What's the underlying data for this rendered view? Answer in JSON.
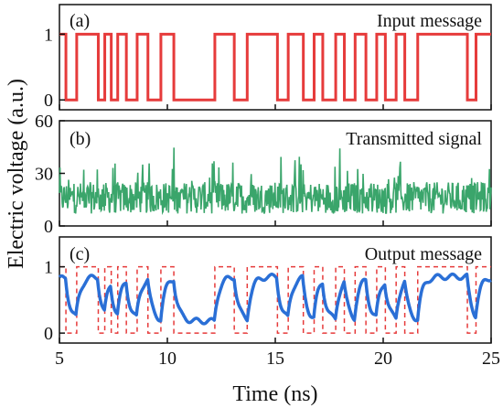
{
  "chart_data": [
    {
      "type": "line",
      "panel_label": "(a)",
      "annotation": "Input message",
      "ylim": [
        -0.15,
        1.45
      ],
      "yticks": [
        "0",
        "1"
      ],
      "ytick_values": [
        0,
        1
      ],
      "xlim": [
        5,
        25
      ],
      "color": "#e63b3b",
      "series": [
        {
          "x": [
            5.0,
            5.3,
            5.8,
            6.3,
            6.8,
            7.1,
            7.4,
            7.7,
            8.1,
            8.6,
            9.1,
            9.7,
            10.3,
            11.3,
            12.2,
            13.1,
            13.7,
            14.5,
            15.1,
            15.6,
            16.3,
            16.8,
            17.2,
            17.8,
            18.2,
            18.7,
            19.2,
            19.7,
            20.1,
            20.6,
            21.0,
            21.6,
            22.3,
            22.8,
            23.4,
            23.9,
            24.3,
            25.0
          ],
          "y": [
            1,
            0,
            1,
            1,
            0,
            1,
            0,
            1,
            0,
            1,
            0,
            1,
            0,
            0,
            1,
            0,
            1,
            1,
            0,
            1,
            0,
            1,
            0,
            1,
            0,
            1,
            0,
            1,
            0,
            1,
            0,
            1,
            1,
            1,
            1,
            0,
            1,
            1
          ]
        }
      ]
    },
    {
      "type": "line",
      "panel_label": "(b)",
      "annotation": "Transmitted signal",
      "ylim": [
        0,
        60
      ],
      "yticks": [
        "0",
        "30",
        "60"
      ],
      "ytick_values": [
        0,
        30,
        60
      ],
      "xlim": [
        5,
        25
      ],
      "color": "#3aa56b",
      "baseline": 16,
      "spread": 9,
      "n_points": 800
    },
    {
      "type": "line",
      "panel_label": "(c)",
      "annotation": "Output message",
      "ylim": [
        -0.15,
        1.45
      ],
      "yticks": [
        "0",
        "1"
      ],
      "ytick_values": [
        0,
        1
      ],
      "xlim": [
        5,
        25
      ],
      "output_color": "#2a6fd6",
      "reference_color": "#e63b3b",
      "reference_style": "dashed-boxes"
    }
  ],
  "x_axis": {
    "label": "Time (ns)",
    "ticks": [
      "5",
      "10",
      "15",
      "20",
      "25"
    ],
    "tick_values": [
      5,
      10,
      15,
      20,
      25
    ]
  },
  "y_axis": {
    "label": "Electric voltage (a.u.)"
  }
}
